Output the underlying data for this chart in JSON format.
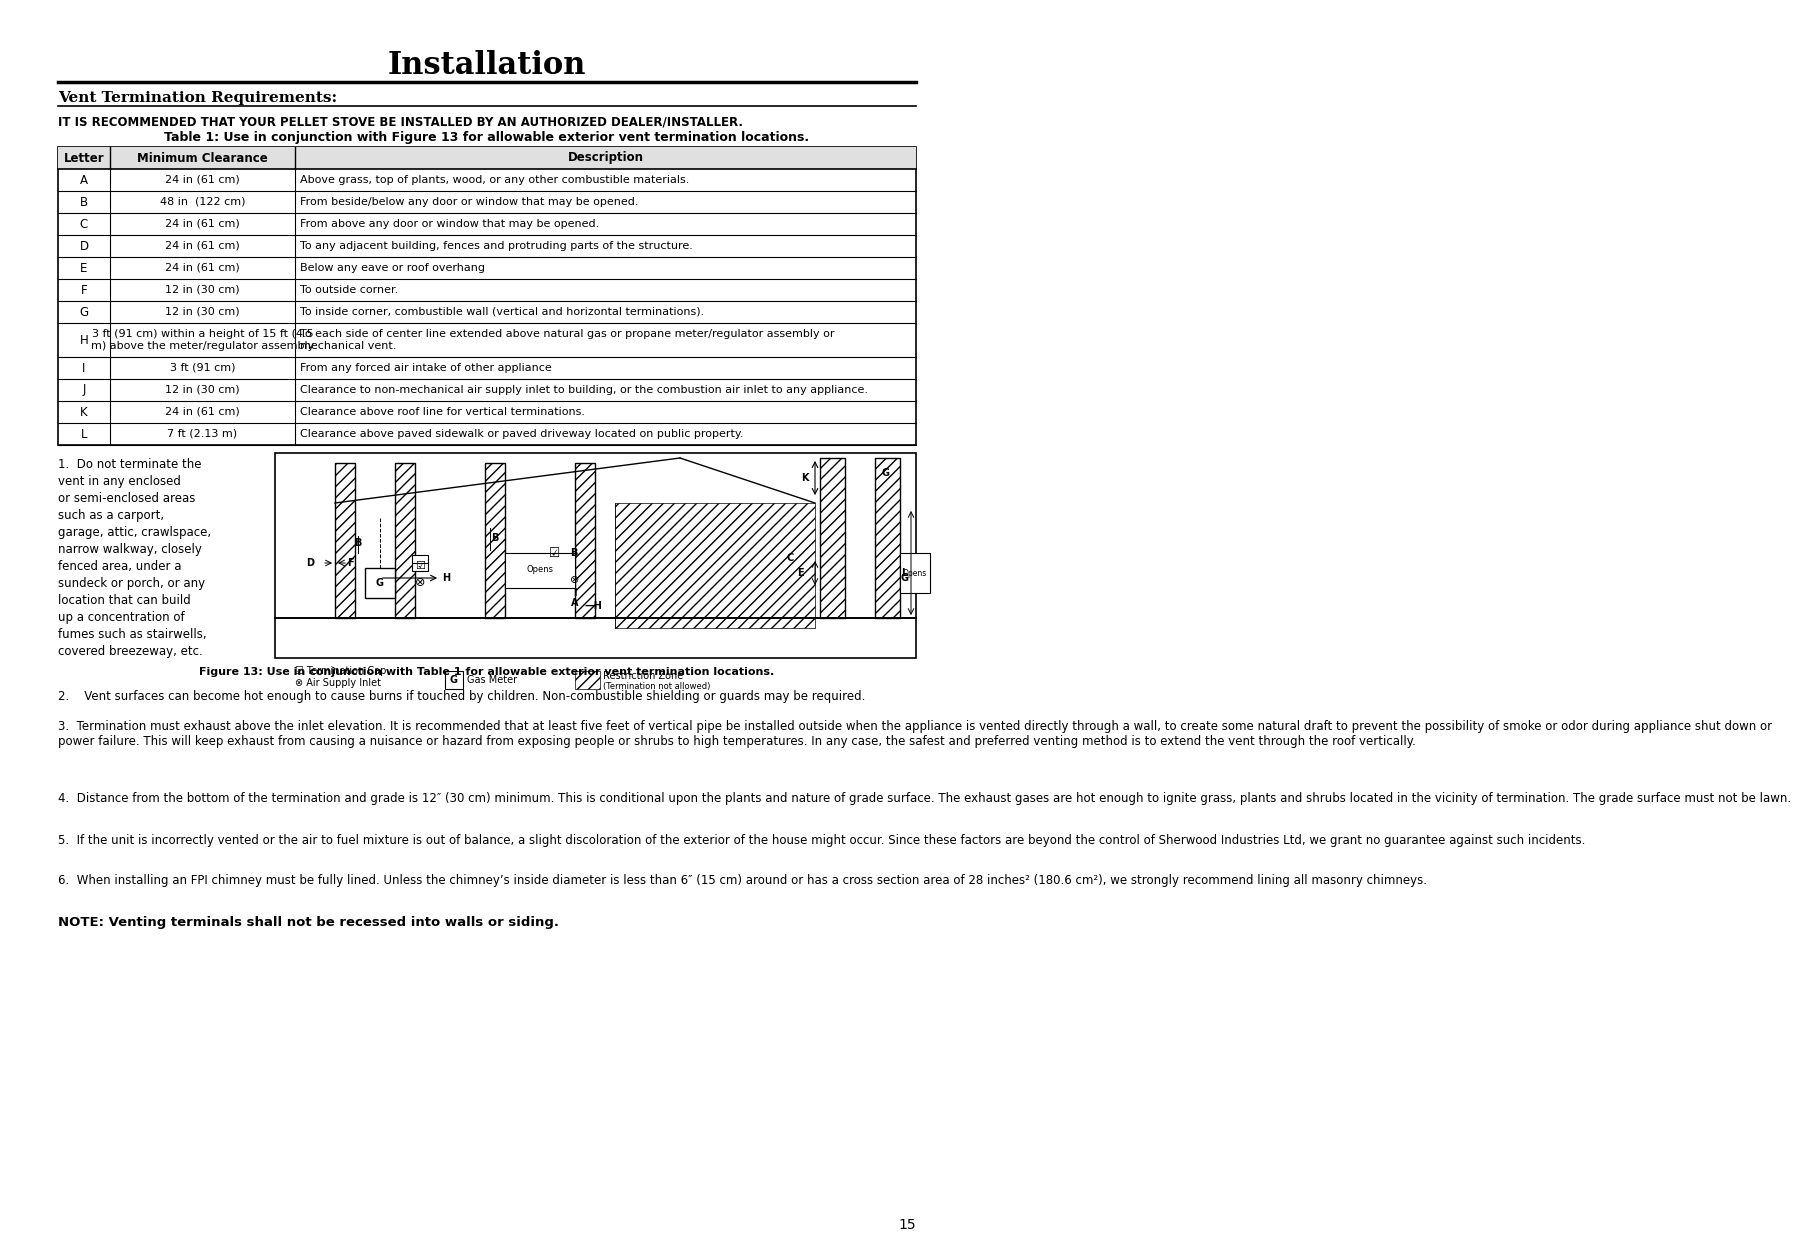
{
  "title": "Installation",
  "section_title": "Vent Termination Requirements:",
  "bold_line": "IT IS RECOMMENDED THAT YOUR PELLET STOVE BE INSTALLED BY AN AUTHORIZED DEALER/INSTALLER.",
  "table_title": "Table 1: Use in conjunction with Figure 13 for allowable exterior vent termination locations.",
  "table_headers": [
    "Letter",
    "Minimum Clearance",
    "Description"
  ],
  "table_rows": [
    [
      "A",
      "24 in (61 cm)",
      "Above grass, top of plants, wood, or any other combustible materials."
    ],
    [
      "B",
      "48 in  (122 cm)",
      "From beside/below any door or window that may be opened."
    ],
    [
      "C",
      "24 in (61 cm)",
      "From above any door or window that may be opened."
    ],
    [
      "D",
      "24 in (61 cm)",
      "To any adjacent building, fences and protruding parts of the structure."
    ],
    [
      "E",
      "24 in (61 cm)",
      "Below any eave or roof overhang"
    ],
    [
      "F",
      "12 in (30 cm)",
      "To outside corner."
    ],
    [
      "G",
      "12 in (30 cm)",
      "To inside corner, combustible wall (vertical and horizontal terminations)."
    ],
    [
      "H",
      "3 ft (91 cm) within a height of 15 ft (4.5\nm) above the meter/regulator assembly",
      "To each side of center line extended above natural gas or propane meter/regulator assembly or\nmechanical vent."
    ],
    [
      "I",
      "3 ft (91 cm)",
      "From any forced air intake of other appliance"
    ],
    [
      "J",
      "12 in (30 cm)",
      "Clearance to non-mechanical air supply inlet to building, or the combustion air inlet to any appliance."
    ],
    [
      "K",
      "24 in (61 cm)",
      "Clearance above roof line for vertical terminations."
    ],
    [
      "L",
      "7 ft (2.13 m)",
      "Clearance above paved sidewalk or paved driveway located on public property."
    ]
  ],
  "figure_caption": "Figure 13: Use in conjunction with Table 1 for allowable exterior vent termination locations.",
  "point1": "1.  Do not terminate the vent in any enclosed or semi-enclosed areas such as a carport, garage, attic, crawlspace, narrow walkway, closely fenced area, under a sundeck or porch, or any location that can build up a concentration of fumes such as stairwells, covered breezeway, etc.",
  "point2": "2.    Vent surfaces can become hot enough to cause burns if touched by children. Non-combustible shielding or guards may be required.",
  "point3": "3.  Termination must exhaust above the inlet elevation. It is recommended that at least five feet of vertical pipe be installed outside when the appliance is vented directly through a wall, to create some natural draft to prevent the possibility of smoke or odor during appliance shut down or power failure. This will keep exhaust from causing a nuisance or hazard from exposing people or shrubs to high temperatures. In any case, the safest and preferred venting method is to extend the vent through the roof vertically.",
  "point4": "4.  Distance from the bottom of the termination and grade is 12″ (30 cm) minimum. This is conditional upon the plants and nature of grade surface. The exhaust gases are hot enough to ignite grass, plants and shrubs located in the vicinity of termination. The grade surface must not be lawn.",
  "point5": "5.  If the unit is incorrectly vented or the air to fuel mixture is out of balance, a slight discoloration of the exterior of the house might occur. Since these factors are beyond the control of Sherwood Industries Ltd, we grant no guarantee against such incidents.",
  "point6": "6.  When installing an FPI chimney must be fully lined. Unless the chimney’s inside diameter is less than 6″ (15 cm) around or has a cross section area of 28 inches² (180.6 cm²), we strongly recommend lining all masonry chimneys.",
  "note": "NOTE: Venting terminals shall not be recessed into walls or siding.",
  "page_number": "15",
  "bg_color": "#ffffff",
  "text_color": "#000000",
  "font_family": "DejaVu Serif"
}
